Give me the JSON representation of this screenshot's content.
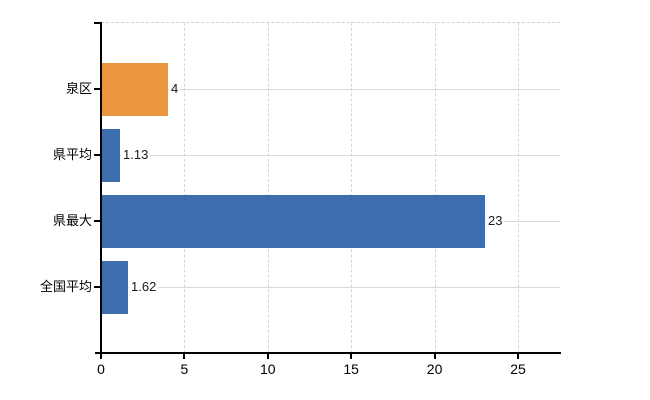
{
  "chart_data": {
    "type": "bar",
    "orientation": "horizontal",
    "title": "",
    "xlabel": "",
    "ylabel": "",
    "categories": [
      "泉区",
      "県平均",
      "県最大",
      "全国平均"
    ],
    "values": [
      4,
      1.13,
      23,
      1.62
    ],
    "value_labels": [
      "4",
      "1.13",
      "23",
      "1.62"
    ],
    "bar_colors": [
      "#EB9740",
      "#3C6EAE",
      "#3C6EAE",
      "#3C6EAE"
    ],
    "x_ticks": [
      0,
      5,
      10,
      15,
      20,
      25
    ],
    "x_tick_labels": [
      "0",
      "5",
      "10",
      "15",
      "20",
      "25"
    ],
    "xlim": [
      0,
      27.5
    ],
    "grid": true,
    "gridline_style": {
      "vertical": "dashed",
      "horizontal": "solid"
    },
    "legend": "none"
  },
  "colors": {
    "bar_blue": "#3C6EAE",
    "bar_orange": "#EB9740",
    "gridline": "#D9D9D9",
    "axis": "#000000",
    "background": "#FFFFFF",
    "text": "#000000"
  }
}
